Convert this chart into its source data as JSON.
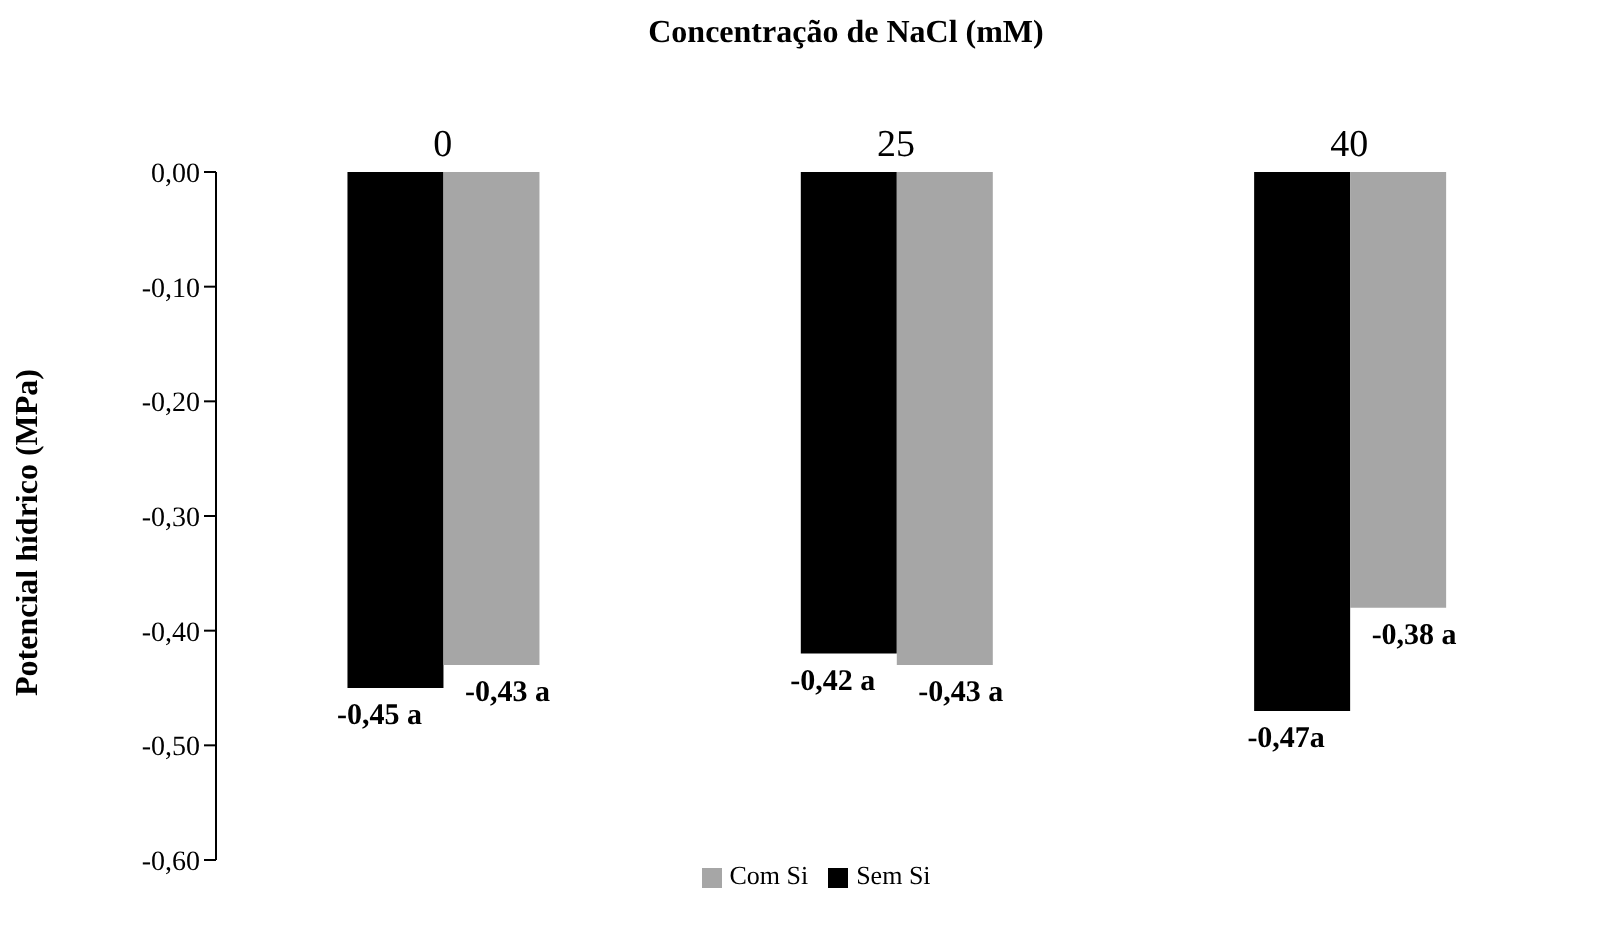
{
  "chart_data": {
    "type": "bar",
    "xlabel": "Concentração de NaCl (mM)",
    "ylabel": "Potencial hídrico (MPa)",
    "categories": [
      "0",
      "25",
      "40"
    ],
    "series": [
      {
        "name": "Sem Si",
        "color": "#000000",
        "values": [
          -0.45,
          -0.42,
          -0.47
        ],
        "value_labels": [
          "-0,45 a",
          "-0,42 a",
          "-0,47a"
        ]
      },
      {
        "name": "Com Si",
        "color": "#a6a6a6",
        "values": [
          -0.43,
          -0.43,
          -0.38
        ],
        "value_labels": [
          "-0,43 a",
          "-0,43 a",
          "-0,38 a"
        ]
      }
    ],
    "ylim": [
      -0.6,
      0
    ],
    "yticks": [
      {
        "value": 0,
        "label": "0,00"
      },
      {
        "value": -0.1,
        "label": "-0,10"
      },
      {
        "value": -0.2,
        "label": "-0,20"
      },
      {
        "value": -0.3,
        "label": "-0,30"
      },
      {
        "value": -0.4,
        "label": "-0,40"
      },
      {
        "value": -0.5,
        "label": "-0,50"
      },
      {
        "value": -0.6,
        "label": "-0,60"
      }
    ],
    "grid": false,
    "legend": "bottom"
  }
}
